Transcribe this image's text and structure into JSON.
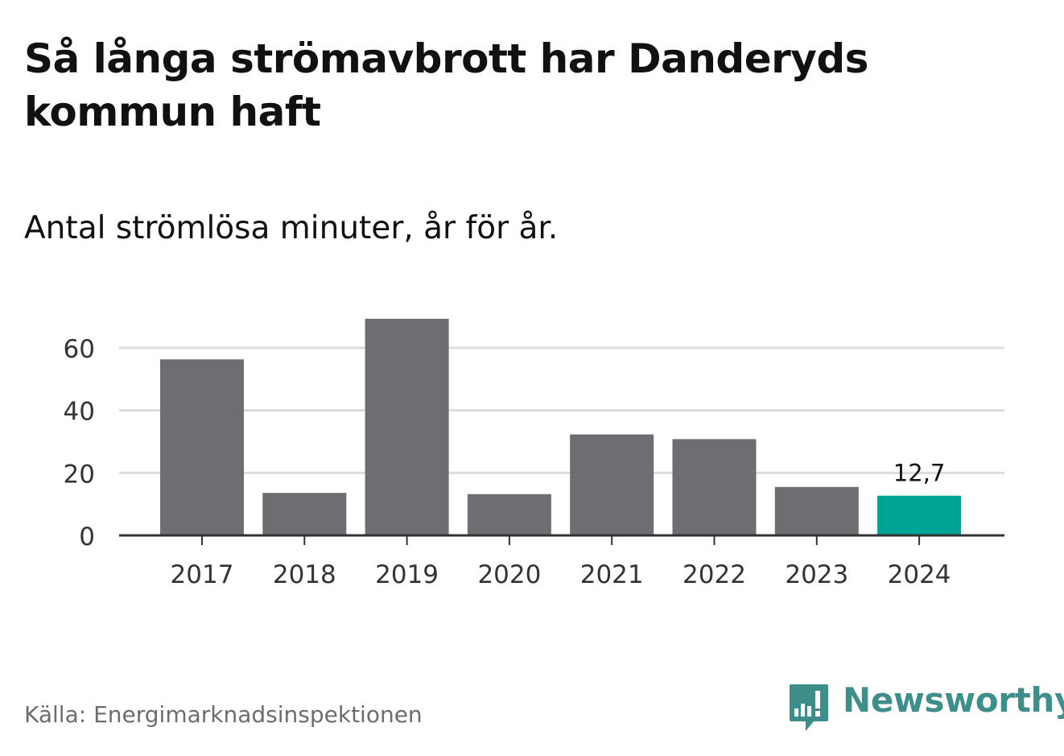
{
  "header": {
    "title": "Så långa strömavbrott har Danderyds kommun haft",
    "subtitle": "Antal strömlösa minuter, år för år."
  },
  "footer": {
    "source": "Källa: Energimarknadsinspektionen",
    "brand": "Newsworthy"
  },
  "colors": {
    "bar": "#6e6d72",
    "highlight": "#00a496",
    "grid": "#dcdcdc",
    "axis": "#333333",
    "tick_text": "#333333",
    "brand": "#3e8f8c"
  },
  "chart_data": {
    "type": "bar",
    "title": "Så långa strömavbrott har Danderyds kommun haft",
    "subtitle": "Antal strömlösa minuter, år för år.",
    "categories": [
      "2017",
      "2018",
      "2019",
      "2020",
      "2021",
      "2022",
      "2023",
      "2024"
    ],
    "values": [
      56.3,
      13.6,
      69.3,
      13.2,
      32.3,
      30.8,
      15.5,
      12.7
    ],
    "highlight_index": 7,
    "data_labels": [
      {
        "index": 7,
        "text": "12,7"
      }
    ],
    "xlabel": "",
    "ylabel": "",
    "ylim": [
      0,
      70
    ],
    "yticks": [
      0,
      20,
      40,
      60
    ],
    "grid": true,
    "legend": "none"
  }
}
